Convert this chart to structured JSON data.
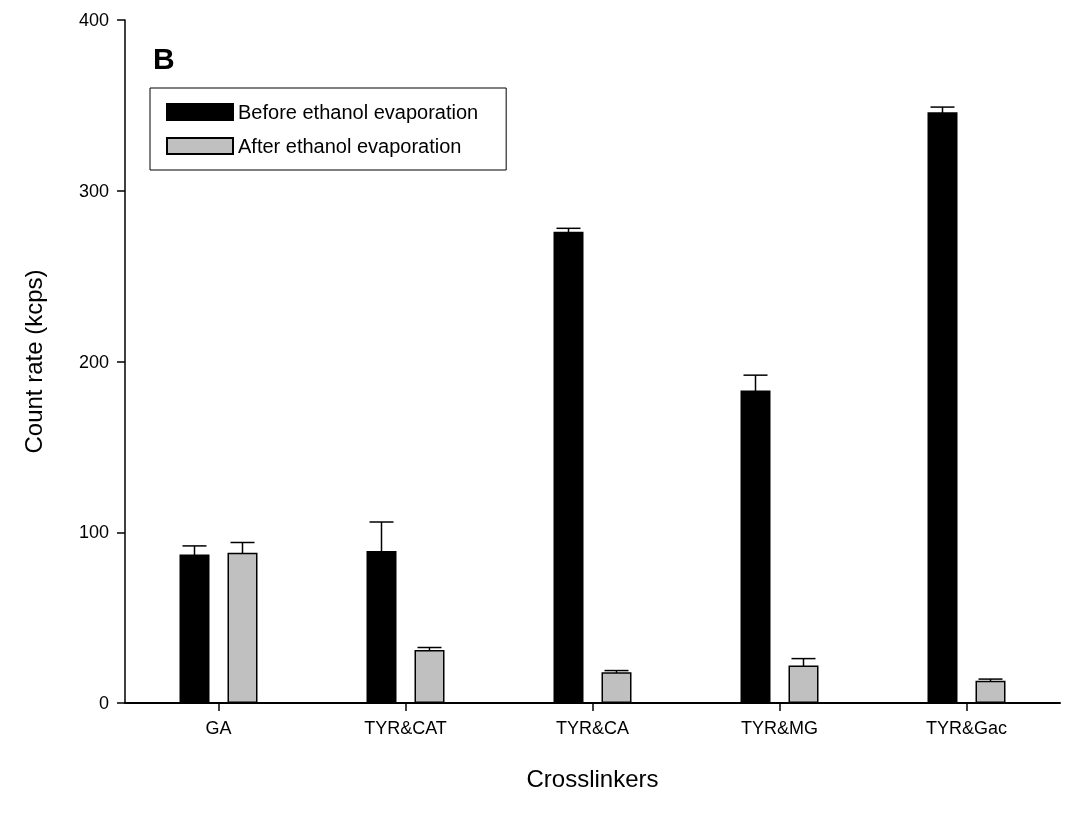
{
  "chart_data": {
    "type": "bar",
    "title": "B",
    "xlabel": "Crosslinkers",
    "ylabel": "Count rate (kcps)",
    "categories": [
      "GA",
      "TYR&CAT",
      "TYR&CA",
      "TYR&MG",
      "TYR&Gac"
    ],
    "series": [
      {
        "name": "Before ethanol evaporation",
        "color": "#000000",
        "values": [
          87,
          89,
          276,
          183,
          346
        ],
        "errors": [
          5,
          17,
          2,
          9,
          3
        ]
      },
      {
        "name": "After ethanol evaporation",
        "color": "#c0c0c0",
        "values": [
          88,
          31,
          18,
          22,
          13
        ],
        "errors": [
          6,
          1.5,
          1,
          4,
          1
        ]
      }
    ],
    "ylim": [
      0,
      400
    ],
    "yticks": [
      0,
      100,
      200,
      300,
      400
    ],
    "grid": false,
    "legend": "top left"
  }
}
